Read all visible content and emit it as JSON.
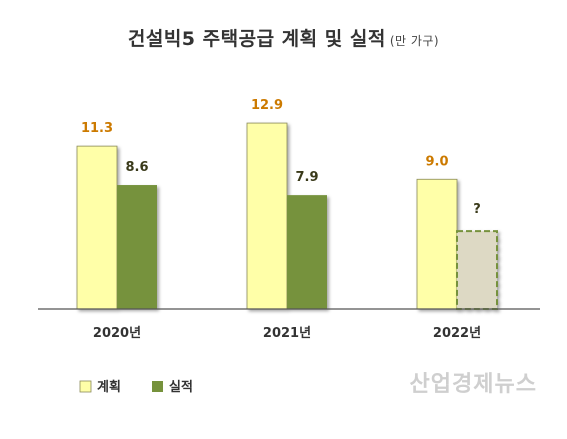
{
  "title": "건설빅5 주택공급 계획 및 실적",
  "title_unit": "(만 가구)",
  "watermark": "산업경제뉴스",
  "unknown_marker": "?",
  "colors": {
    "plan_fill": "#FFFFA8",
    "plan_stroke": "#8a8a5a",
    "actual_fill": "#76923C",
    "unknown_fill": "#DDD9C4",
    "unknown_stroke": "#76923C",
    "plan_label": "#CC7A00",
    "actual_label": "#3A3A1A",
    "axis": "#555555"
  },
  "chart_data": {
    "type": "bar",
    "title": "건설빅5 주택공급 계획 및 실적",
    "categories": [
      "2020년",
      "2021년",
      "2022년"
    ],
    "series": [
      {
        "name": "계획",
        "values": [
          11.3,
          12.9,
          9.0
        ],
        "labels": [
          "11.3",
          "12.9",
          "9.0"
        ]
      },
      {
        "name": "실적",
        "values": [
          8.6,
          7.9,
          null
        ],
        "labels": [
          "8.6",
          "7.9",
          "?"
        ]
      }
    ],
    "ylim": [
      0,
      14.5
    ],
    "grid": false,
    "legend": "bottom-left"
  }
}
